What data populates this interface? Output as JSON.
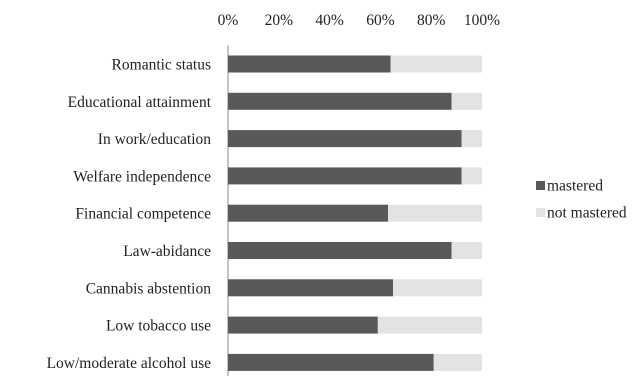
{
  "chart_data": {
    "type": "bar",
    "stacked": true,
    "orientation": "horizontal",
    "categories": [
      "Romantic status",
      "Educational attainment",
      "In work/education",
      "Welfare independence",
      "Financial competence",
      "Law-abidance",
      "Cannabis abstention",
      "Low tobacco use",
      "Low/moderate alcohol use"
    ],
    "series": [
      {
        "name": "mastered",
        "values": [
          64,
          88,
          92,
          92,
          63,
          88,
          65,
          59,
          81
        ],
        "color": "#595959"
      },
      {
        "name": "not mastered",
        "values": [
          36,
          12,
          8,
          8,
          37,
          12,
          35,
          41,
          19
        ],
        "color": "#e3e3e3"
      }
    ],
    "x_ticks": [
      "0%",
      "20%",
      "40%",
      "60%",
      "80%",
      "100%"
    ],
    "xlim": [
      0,
      100
    ],
    "x_axis_position": "top",
    "grid": false,
    "legend_position": "right"
  }
}
